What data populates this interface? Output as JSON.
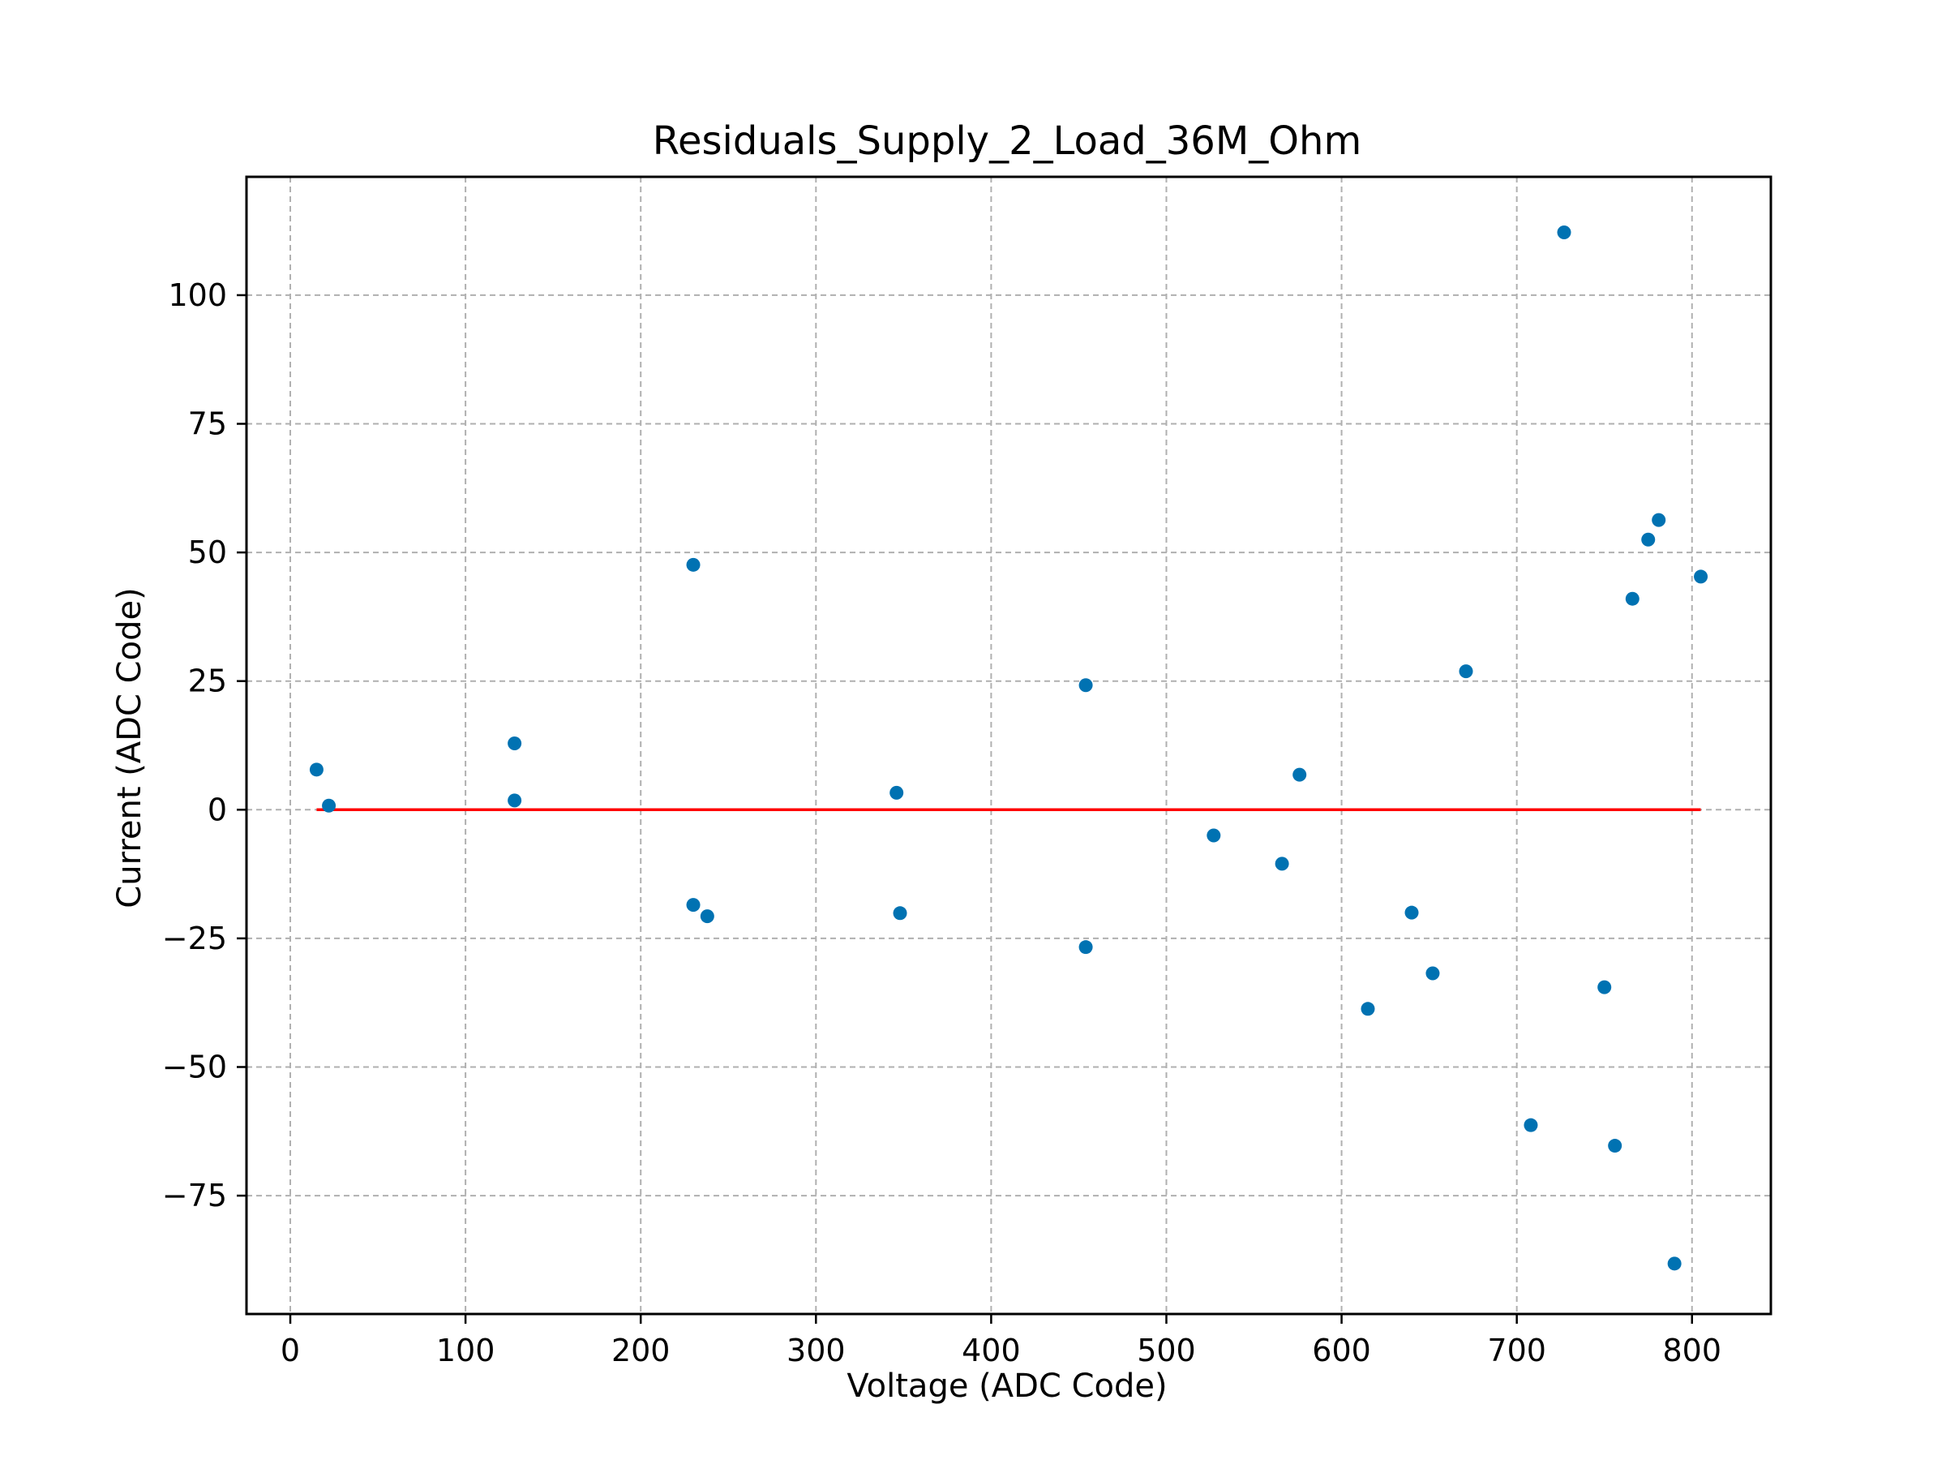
{
  "chart_data": {
    "type": "scatter",
    "title": "Residuals_Supply_2_Load_36M_Ohm",
    "xlabel": "Voltage (ADC Code)",
    "ylabel": "Current (ADC Code)",
    "xlim": [
      -25,
      845
    ],
    "ylim": [
      -98,
      123
    ],
    "x_ticks": [
      0,
      100,
      200,
      300,
      400,
      500,
      600,
      700,
      800
    ],
    "y_ticks": [
      -75,
      -50,
      -25,
      0,
      25,
      50,
      75,
      100
    ],
    "x_tick_labels": [
      "0",
      "100",
      "200",
      "300",
      "400",
      "500",
      "600",
      "700",
      "800"
    ],
    "y_tick_labels": [
      "−75",
      "−50",
      "−25",
      "0",
      "25",
      "50",
      "75",
      "100"
    ],
    "grid": true,
    "series": [
      {
        "kind": "scatter",
        "color": "#0072b2",
        "points": [
          [
            15,
            7.8
          ],
          [
            22,
            0.8
          ],
          [
            128,
            12.9
          ],
          [
            128,
            1.8
          ],
          [
            230,
            47.6
          ],
          [
            230,
            -18.5
          ],
          [
            238,
            -20.7
          ],
          [
            346,
            3.3
          ],
          [
            348,
            -20.1
          ],
          [
            454,
            24.2
          ],
          [
            454,
            -26.7
          ],
          [
            527,
            -5.0
          ],
          [
            566,
            -10.5
          ],
          [
            576,
            6.8
          ],
          [
            615,
            -38.7
          ],
          [
            640,
            -20.0
          ],
          [
            652,
            -31.8
          ],
          [
            671,
            26.9
          ],
          [
            708,
            -61.3
          ],
          [
            727,
            112.2
          ],
          [
            750,
            -34.5
          ],
          [
            756,
            -65.3
          ],
          [
            766,
            41.0
          ],
          [
            775,
            52.5
          ],
          [
            781,
            56.3
          ],
          [
            790,
            -88.2
          ],
          [
            805,
            45.3
          ]
        ]
      },
      {
        "kind": "line",
        "color": "#ff0000",
        "x": [
          15,
          805
        ],
        "y": [
          0,
          0
        ]
      }
    ]
  }
}
